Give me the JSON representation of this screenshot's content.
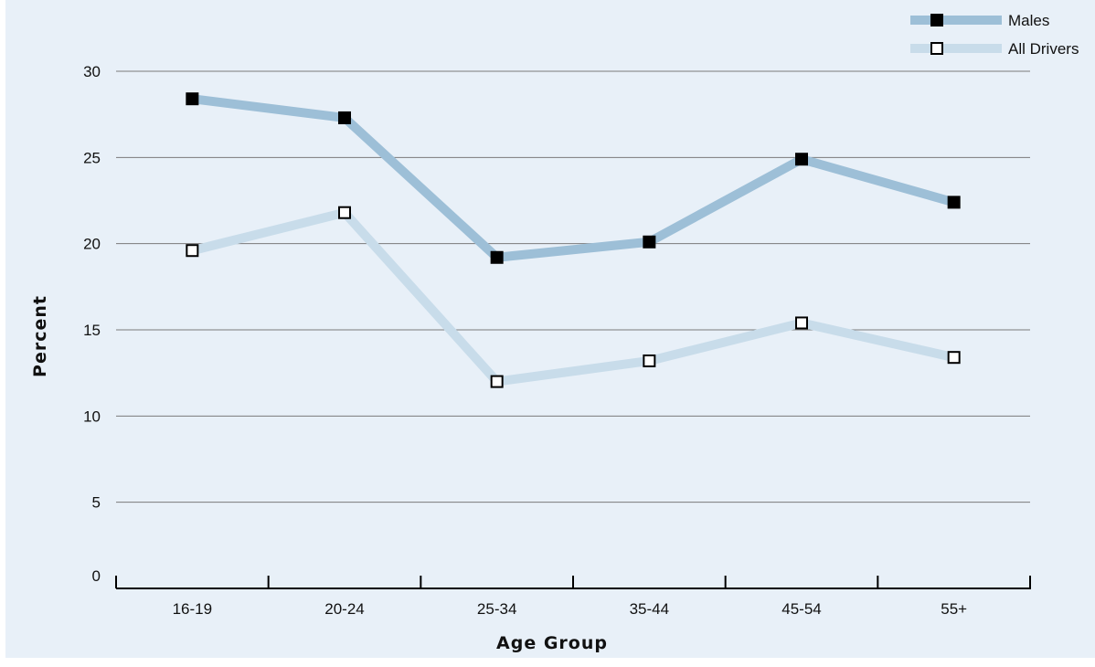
{
  "chart_data": {
    "type": "line",
    "categories": [
      "16-19",
      "20-24",
      "25-34",
      "35-44",
      "45-54",
      "55+"
    ],
    "series": [
      {
        "name": "Males",
        "values": [
          28.4,
          27.3,
          19.2,
          20.1,
          24.9,
          22.4
        ],
        "color": "#9dbfd7",
        "marker": "filled-square"
      },
      {
        "name": "All Drivers",
        "values": [
          19.6,
          21.8,
          12.0,
          13.2,
          15.4,
          13.4
        ],
        "color": "#c8dcea",
        "marker": "open-square"
      }
    ],
    "xlabel": "Age Group",
    "ylabel": "Percent",
    "ylim": [
      0,
      30
    ],
    "yticks": [
      0,
      5,
      10,
      15,
      20,
      25,
      30
    ],
    "grid": true,
    "legend": "top-right"
  }
}
